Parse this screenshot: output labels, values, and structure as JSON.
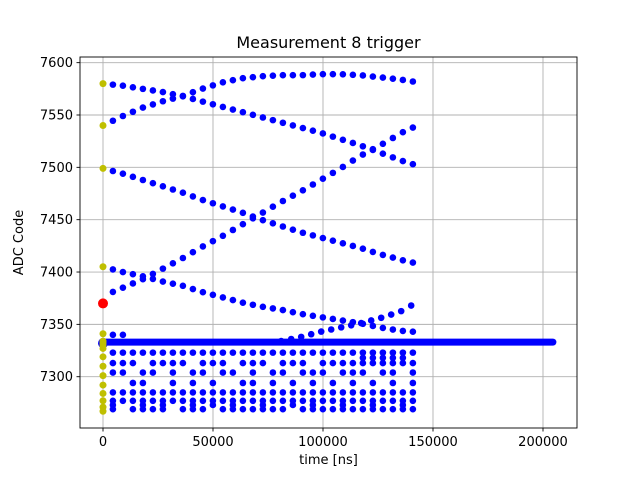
{
  "figure": {
    "background": "#ffffff"
  },
  "chart_data": {
    "type": "scatter",
    "title": "Measurement 8 trigger",
    "xlabel": "time [ns]",
    "ylabel": "ADC Code",
    "xlim": [
      -10455,
      215455
    ],
    "ylim": [
      7251,
      7605.4
    ],
    "grid": true,
    "grid_color": "#b0b0b0",
    "spine_color": "#000000",
    "xticks": {
      "values": [
        0,
        50000,
        100000,
        150000,
        200000
      ],
      "labels": [
        "0",
        "50000",
        "100000",
        "150000",
        "200000"
      ]
    },
    "yticks": {
      "values": [
        7300,
        7350,
        7400,
        7450,
        7500,
        7550,
        7600
      ],
      "labels": [
        "7300",
        "7350",
        "7400",
        "7450",
        "7500",
        "7550",
        "7600"
      ]
    },
    "sample_step_ns": 4545,
    "series": {
      "traces": {
        "color": "#0000ff",
        "marker_px": 3.3,
        "x_start": 4500,
        "x_end": 141000,
        "curves": [
          {
            "name": "trace-7580-falling",
            "anchors": [
              [
                0,
                7580
              ],
              [
                9000,
                7578
              ],
              [
                18000,
                7575
              ],
              [
                27000,
                7572
              ],
              [
                36000,
                7568
              ],
              [
                45000,
                7563
              ],
              [
                54000,
                7558
              ],
              [
                63000,
                7553
              ],
              [
                72000,
                7548
              ],
              [
                81000,
                7543
              ],
              [
                90000,
                7538
              ],
              [
                99000,
                7533
              ],
              [
                108000,
                7527
              ],
              [
                117000,
                7521
              ],
              [
                126000,
                7514
              ],
              [
                135000,
                7507
              ],
              [
                140000,
                7503
              ]
            ]
          },
          {
            "name": "trace-7540-rising",
            "anchors": [
              [
                0,
                7540
              ],
              [
                9000,
                7549
              ],
              [
                18000,
                7557
              ],
              [
                27000,
                7563
              ],
              [
                36000,
                7568
              ],
              [
                45000,
                7575
              ],
              [
                54000,
                7581
              ],
              [
                63000,
                7585
              ],
              [
                72000,
                7587
              ],
              [
                81000,
                7588
              ],
              [
                90000,
                7588
              ],
              [
                99000,
                7589
              ],
              [
                108000,
                7589
              ],
              [
                117000,
                7588
              ],
              [
                126000,
                7586
              ],
              [
                135000,
                7584
              ],
              [
                140000,
                7582
              ]
            ]
          },
          {
            "name": "trace-7499-falling",
            "anchors": [
              [
                0,
                7499
              ],
              [
                9000,
                7494
              ],
              [
                18000,
                7488
              ],
              [
                27000,
                7482
              ],
              [
                36000,
                7476
              ],
              [
                45000,
                7469
              ],
              [
                54000,
                7463
              ],
              [
                63000,
                7457
              ],
              [
                72000,
                7450
              ],
              [
                81000,
                7444
              ],
              [
                90000,
                7438
              ],
              [
                99000,
                7433
              ],
              [
                108000,
                7428
              ],
              [
                117000,
                7423
              ],
              [
                126000,
                7417
              ],
              [
                135000,
                7412
              ],
              [
                140000,
                7409
              ]
            ]
          },
          {
            "name": "trace-7377-rising",
            "anchors": [
              [
                0,
                7377
              ],
              [
                9000,
                7385
              ],
              [
                18000,
                7393
              ],
              [
                27000,
                7403
              ],
              [
                36000,
                7413
              ],
              [
                45000,
                7424
              ],
              [
                54000,
                7434
              ],
              [
                63000,
                7445
              ],
              [
                72000,
                7456
              ],
              [
                81000,
                7467
              ],
              [
                90000,
                7477
              ],
              [
                99000,
                7488
              ],
              [
                108000,
                7499
              ],
              [
                117000,
                7511
              ],
              [
                126000,
                7521
              ],
              [
                135000,
                7532
              ],
              [
                140000,
                7538
              ]
            ]
          },
          {
            "name": "trace-7405-falling",
            "anchors": [
              [
                0,
                7405
              ],
              [
                9000,
                7400
              ],
              [
                18000,
                7396
              ],
              [
                27000,
                7391
              ],
              [
                36000,
                7387
              ],
              [
                45000,
                7381
              ],
              [
                54000,
                7376
              ],
              [
                63000,
                7371
              ],
              [
                72000,
                7367
              ],
              [
                81000,
                7364
              ],
              [
                90000,
                7360
              ],
              [
                99000,
                7357
              ],
              [
                108000,
                7354
              ],
              [
                117000,
                7351
              ],
              [
                126000,
                7347
              ],
              [
                135000,
                7344
              ],
              [
                140000,
                7343
              ]
            ]
          },
          {
            "name": "trace-band-rising",
            "x_start": 81000,
            "anchors": [
              [
                81000,
                7334
              ],
              [
                90000,
                7338
              ],
              [
                99000,
                7343
              ],
              [
                108000,
                7347
              ],
              [
                117000,
                7351
              ],
              [
                126000,
                7356
              ],
              [
                135000,
                7362
              ],
              [
                140000,
                7368
              ]
            ]
          }
        ]
      },
      "baseline_band": {
        "color": "#0000ff",
        "y": 7333,
        "x_start": 0,
        "x_end": 204500,
        "thickness_px": 7
      },
      "band_start_dot": {
        "color": "#0000ff",
        "point": [
          0,
          7332
        ],
        "marker_px": 5
      },
      "pulse_columns": {
        "color": "#0000ff",
        "marker_px": 3.3,
        "columns": [
          {
            "x": 4500,
            "ys": [
              7340,
              7323,
              7313,
              7304,
              7285,
              7277,
              7273,
              7269
            ]
          },
          {
            "x": 9045,
            "ys": [
              7340,
              7323,
              7313,
              7304,
              7285,
              7277
            ]
          },
          {
            "x": 13590,
            "ys": [
              7323,
              7313,
              7294,
              7285,
              7277,
              7269
            ]
          },
          {
            "x": 18135,
            "ys": [
              7323,
              7304,
              7294,
              7285,
              7277,
              7273,
              7269
            ]
          },
          {
            "x": 22680,
            "ys": [
              7323,
              7313,
              7304,
              7285,
              7277,
              7269
            ]
          },
          {
            "x": 27225,
            "ys": [
              7323,
              7313,
              7285,
              7277,
              7273,
              7269
            ]
          },
          {
            "x": 31770,
            "ys": [
              7323,
              7313,
              7304,
              7294,
              7285,
              7277
            ]
          },
          {
            "x": 36315,
            "ys": [
              7323,
              7313,
              7285,
              7277,
              7269
            ]
          },
          {
            "x": 40860,
            "ys": [
              7323,
              7304,
              7294,
              7285,
              7277,
              7273,
              7269
            ]
          },
          {
            "x": 45405,
            "ys": [
              7323,
              7313,
              7304,
              7285,
              7277,
              7269
            ]
          },
          {
            "x": 49950,
            "ys": [
              7323,
              7313,
              7294,
              7285,
              7277,
              7273
            ]
          },
          {
            "x": 54495,
            "ys": [
              7323,
              7313,
              7304,
              7285,
              7277,
              7269
            ]
          },
          {
            "x": 59040,
            "ys": [
              7323,
              7304,
              7285,
              7277,
              7273,
              7269
            ]
          },
          {
            "x": 63585,
            "ys": [
              7323,
              7313,
              7294,
              7285,
              7277,
              7269
            ]
          },
          {
            "x": 68130,
            "ys": [
              7323,
              7313,
              7304,
              7294,
              7285,
              7277,
              7269
            ]
          },
          {
            "x": 72675,
            "ys": [
              7323,
              7313,
              7285,
              7277,
              7273,
              7269
            ]
          },
          {
            "x": 77220,
            "ys": [
              7323,
              7304,
              7294,
              7285,
              7277,
              7269
            ]
          },
          {
            "x": 81765,
            "ys": [
              7323,
              7313,
              7304,
              7285,
              7277,
              7269
            ]
          },
          {
            "x": 86310,
            "ys": [
              7323,
              7313,
              7294,
              7285,
              7277,
              7273
            ]
          },
          {
            "x": 90855,
            "ys": [
              7323,
              7313,
              7304,
              7285,
              7277,
              7269
            ]
          },
          {
            "x": 95400,
            "ys": [
              7323,
              7304,
              7294,
              7285,
              7277,
              7273,
              7269
            ]
          },
          {
            "x": 99945,
            "ys": [
              7323,
              7313,
              7304,
              7285,
              7277,
              7269
            ]
          },
          {
            "x": 104490,
            "ys": [
              7323,
              7313,
              7294,
              7285,
              7277,
              7269
            ]
          },
          {
            "x": 109035,
            "ys": [
              7323,
              7313,
              7304,
              7285,
              7277,
              7273,
              7269
            ]
          },
          {
            "x": 113580,
            "ys": [
              7323,
              7313,
              7304,
              7294,
              7285,
              7277,
              7269
            ]
          },
          {
            "x": 118125,
            "ys": [
              7323,
              7318,
              7313,
              7304,
              7285,
              7277,
              7269
            ]
          },
          {
            "x": 122670,
            "ys": [
              7323,
              7318,
              7313,
              7294,
              7285,
              7277,
              7273,
              7269
            ]
          },
          {
            "x": 127215,
            "ys": [
              7323,
              7318,
              7313,
              7304,
              7285,
              7277,
              7269
            ]
          },
          {
            "x": 131760,
            "ys": [
              7323,
              7318,
              7313,
              7304,
              7294,
              7285,
              7277,
              7269
            ]
          },
          {
            "x": 136305,
            "ys": [
              7323,
              7318,
              7313,
              7285,
              7277,
              7273,
              7269
            ]
          },
          {
            "x": 140850,
            "ys": [
              7323,
              7313,
              7304,
              7294,
              7285,
              7277,
              7269
            ]
          }
        ]
      },
      "trigger_markers_yellow": {
        "color": "#bfbf00",
        "marker_px": 3.5,
        "points": [
          [
            0,
            7580
          ],
          [
            0,
            7540
          ],
          [
            0,
            7499
          ],
          [
            0,
            7405
          ],
          [
            0,
            7341
          ],
          [
            0,
            7334
          ],
          [
            0,
            7332
          ],
          [
            0,
            7330
          ],
          [
            0,
            7327
          ],
          [
            0,
            7319
          ],
          [
            0,
            7310
          ],
          [
            0,
            7301
          ],
          [
            0,
            7292
          ],
          [
            0,
            7284
          ],
          [
            0,
            7277
          ],
          [
            0,
            7271
          ],
          [
            0,
            7267
          ]
        ]
      },
      "trigger_marker_red": {
        "color": "#ff0000",
        "marker_px": 5,
        "point": [
          0,
          7370
        ]
      }
    }
  }
}
